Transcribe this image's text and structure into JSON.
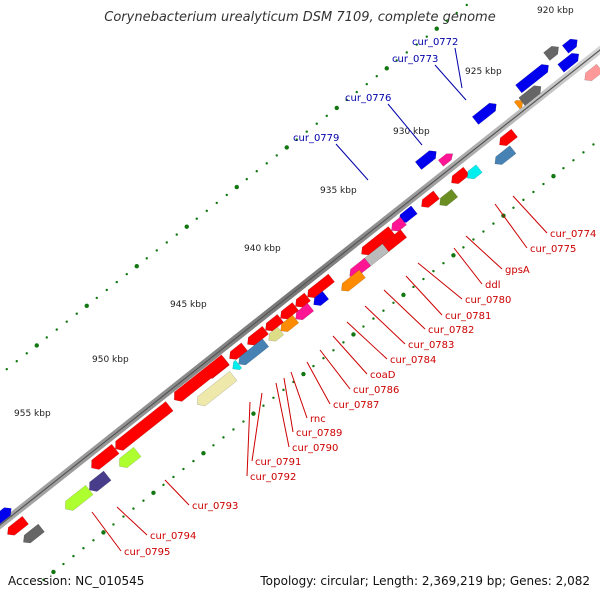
{
  "title": "Corynebacterium urealyticum DSM 7109, complete genome",
  "footer": {
    "accession": "Accession: NC_010545",
    "topology": "Topology: circular; Length: 2,369,219 bp; Genes: 2,082"
  },
  "scale_labels": [
    "920 kbp",
    "925 kbp",
    "930 kbp",
    "935 kbp",
    "940 kbp",
    "945 kbp",
    "950 kbp",
    "955 kbp"
  ],
  "genes_forward": [
    "cur_0772",
    "cur_0773",
    "cur_0776",
    "cur_0779"
  ],
  "genes_reverse": [
    "cur_0774",
    "cur_0775",
    "gpsA",
    "ddl",
    "cur_0780",
    "cur_0781",
    "cur_0782",
    "cur_0783",
    "cur_0784",
    "coaD",
    "cur_0786",
    "cur_0787",
    "rnc",
    "cur_0789",
    "cur_0790",
    "cur_0791",
    "cur_0792",
    "cur_0793",
    "cur_0794",
    "cur_0795"
  ],
  "colors": {
    "red": "#ff0000",
    "blue": "#0000ee",
    "gray": "#666666",
    "steel": "#4682b4",
    "pale_yellow": "#eee8aa",
    "olive": "#6b8e23",
    "lime": "#adff2f",
    "cyan": "#00eeee",
    "pink": "#ff1493",
    "orange": "#ff8c00",
    "slate": "#483d8b",
    "label_red": "#cc0000",
    "label_blue": "#0000aa"
  }
}
